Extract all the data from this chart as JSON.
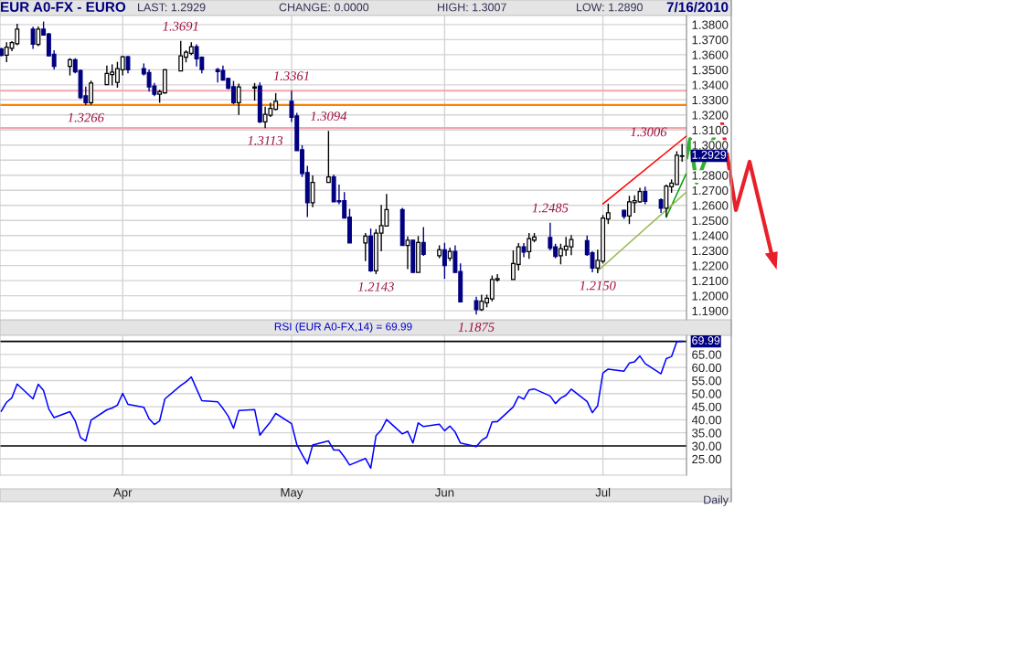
{
  "chart_data": [
    {
      "type": "candlestick",
      "title": "EUR A0-FX - EURO",
      "x": [
        "2010-03-09",
        "2010-03-10",
        "2010-03-11",
        "2010-03-12",
        "2010-03-15",
        "2010-03-16",
        "2010-03-17",
        "2010-03-18",
        "2010-03-19",
        "2010-03-22",
        "2010-03-23",
        "2010-03-24",
        "2010-03-25",
        "2010-03-26",
        "2010-03-29",
        "2010-03-30",
        "2010-03-31",
        "2010-04-01",
        "2010-04-02",
        "2010-04-05",
        "2010-04-06",
        "2010-04-07",
        "2010-04-08",
        "2010-04-09",
        "2010-04-12",
        "2010-04-13",
        "2010-04-14",
        "2010-04-15",
        "2010-04-16",
        "2010-04-19",
        "2010-04-20",
        "2010-04-21",
        "2010-04-22",
        "2010-04-23",
        "2010-04-26",
        "2010-04-27",
        "2010-04-28",
        "2010-04-29",
        "2010-04-30",
        "2010-05-03",
        "2010-05-04",
        "2010-05-05",
        "2010-05-06",
        "2010-05-07",
        "2010-05-10",
        "2010-05-11",
        "2010-05-12",
        "2010-05-13",
        "2010-05-14",
        "2010-05-17",
        "2010-05-18",
        "2010-05-19",
        "2010-05-20",
        "2010-05-21",
        "2010-05-24",
        "2010-05-25",
        "2010-05-26",
        "2010-05-27",
        "2010-05-28",
        "2010-05-31",
        "2010-06-01",
        "2010-06-02",
        "2010-06-03",
        "2010-06-04",
        "2010-06-07",
        "2010-06-08",
        "2010-06-09",
        "2010-06-10",
        "2010-06-11",
        "2010-06-14",
        "2010-06-15",
        "2010-06-16",
        "2010-06-17",
        "2010-06-18",
        "2010-06-21",
        "2010-06-22",
        "2010-06-23",
        "2010-06-24",
        "2010-06-25",
        "2010-06-28",
        "2010-06-29",
        "2010-06-30",
        "2010-07-01",
        "2010-07-02",
        "2010-07-05",
        "2010-07-06",
        "2010-07-07",
        "2010-07-08",
        "2010-07-09",
        "2010-07-12",
        "2010-07-13",
        "2010-07-14",
        "2010-07-15",
        "2010-07-16"
      ],
      "ohlc": [
        [
          1.364,
          1.3645,
          1.3589,
          1.3595
        ],
        [
          1.3597,
          1.3683,
          1.355,
          1.365
        ],
        [
          1.3643,
          1.369,
          1.3623,
          1.368
        ],
        [
          1.3673,
          1.3805,
          1.3663,
          1.377
        ],
        [
          1.377,
          1.3785,
          1.3638,
          1.367
        ],
        [
          1.3668,
          1.3787,
          1.3657,
          1.377
        ],
        [
          1.377,
          1.382,
          1.3728,
          1.373
        ],
        [
          1.3738,
          1.3745,
          1.3589,
          1.3593
        ],
        [
          1.3603,
          1.3629,
          1.3502,
          1.3522
        ],
        [
          1.3522,
          1.3577,
          1.3462,
          1.3567
        ],
        [
          1.3567,
          1.3577,
          1.3476,
          1.3486
        ],
        [
          1.3496,
          1.3502,
          1.3307,
          1.3315
        ],
        [
          1.3327,
          1.3388,
          1.3266,
          1.3281
        ],
        [
          1.3281,
          1.3428,
          1.3267,
          1.3412
        ],
        [
          1.3402,
          1.3528,
          1.3402,
          1.3476
        ],
        [
          1.3468,
          1.3536,
          1.3396,
          1.3484
        ],
        [
          1.3416,
          1.3553,
          1.3381,
          1.3508
        ],
        [
          1.35,
          1.3593,
          1.3462,
          1.3587
        ],
        [
          1.3587,
          1.3593,
          1.3476,
          1.35
        ],
        [
          1.3508,
          1.3542,
          1.3462,
          1.3472
        ],
        [
          1.3482,
          1.3502,
          1.3355,
          1.3386
        ],
        [
          1.3392,
          1.3412,
          1.3325,
          1.3337
        ],
        [
          1.3337,
          1.3367,
          1.3281,
          1.3355
        ],
        [
          1.3347,
          1.3504,
          1.3341,
          1.35
        ],
        [
          1.3492,
          1.3691,
          1.3492,
          1.3593
        ],
        [
          1.3583,
          1.3629,
          1.3549,
          1.3617
        ],
        [
          1.3609,
          1.3683,
          1.3597,
          1.3653
        ],
        [
          1.3653,
          1.3669,
          1.3522,
          1.3573
        ],
        [
          1.3583,
          1.3589,
          1.3476,
          1.3502
        ],
        [
          1.3502,
          1.3512,
          1.3416,
          1.3488
        ],
        [
          1.3496,
          1.3528,
          1.3428,
          1.3432
        ],
        [
          1.3442,
          1.3448,
          1.3371,
          1.3377
        ],
        [
          1.3388,
          1.3426,
          1.3271,
          1.3281
        ],
        [
          1.3281,
          1.3408,
          1.32,
          1.3386
        ],
        [
          1.3378,
          1.3412,
          1.3295,
          1.3386
        ],
        [
          1.3392,
          1.3416,
          1.3146,
          1.3154
        ],
        [
          1.3154,
          1.3255,
          1.3113,
          1.3204
        ],
        [
          1.3198,
          1.3281,
          1.3186,
          1.3243
        ],
        [
          1.3237,
          1.3345,
          1.3231,
          1.3291
        ],
        [
          1.3291,
          1.3361,
          1.3154,
          1.3184
        ],
        [
          1.3194,
          1.3214,
          1.2963,
          1.2963
        ],
        [
          1.2969,
          1.2999,
          1.2788,
          1.2812
        ],
        [
          1.2818,
          1.2862,
          1.2522,
          1.2617
        ],
        [
          1.2617,
          1.2798,
          1.2587,
          1.2752
        ],
        [
          1.2752,
          1.3094,
          1.2752,
          1.2788
        ],
        [
          1.2788,
          1.2804,
          1.2623,
          1.2623
        ],
        [
          1.2631,
          1.2738,
          1.2607,
          1.2623
        ],
        [
          1.2631,
          1.2687,
          1.2516,
          1.2516
        ],
        [
          1.2522,
          1.2577,
          1.2351,
          1.2351
        ],
        [
          1.2351,
          1.2416,
          1.2229,
          1.2396
        ],
        [
          1.2396,
          1.2446,
          1.2158,
          1.2165
        ],
        [
          1.2165,
          1.2442,
          1.2143,
          1.2416
        ],
        [
          1.2416,
          1.2603,
          1.2295,
          1.2466
        ],
        [
          1.2462,
          1.2675,
          1.2462,
          1.2571
        ],
        [
          1.2571,
          1.2583,
          1.2333,
          1.2333
        ],
        [
          1.2333,
          1.2394,
          1.2176,
          1.2369
        ],
        [
          1.2369,
          1.2369,
          1.2154,
          1.2154
        ],
        [
          1.2154,
          1.2396,
          1.2154,
          1.2353
        ],
        [
          1.2353,
          1.2456,
          1.2265,
          1.2275
        ],
        [
          1.2265,
          1.2335,
          1.2249,
          1.2305
        ],
        [
          1.2305,
          1.2351,
          1.2112,
          1.22
        ],
        [
          1.2249,
          1.2319,
          1.2229,
          1.2294
        ],
        [
          1.2294,
          1.2335,
          1.2154,
          1.2154
        ],
        [
          1.216,
          1.2214,
          1.1959,
          1.1959
        ],
        [
          1.1967,
          1.1993,
          1.1875,
          1.1907
        ],
        [
          1.1907,
          1.2007,
          1.1899,
          1.1963
        ],
        [
          1.1953,
          1.2007,
          1.1923,
          1.1983
        ],
        [
          1.1979,
          1.2134,
          1.1963,
          1.2108
        ],
        [
          1.2104,
          1.2144,
          1.2094,
          1.2114
        ],
        [
          1.2108,
          1.2301,
          1.2108,
          1.2214
        ],
        [
          1.2208,
          1.2349,
          1.2168,
          1.2325
        ],
        [
          1.2325,
          1.2349,
          1.2255,
          1.2289
        ],
        [
          1.2293,
          1.2416,
          1.2245,
          1.2379
        ],
        [
          1.2369,
          1.2416,
          1.2355,
          1.239
        ],
        [
          1.2386,
          1.2485,
          1.2301,
          1.2315
        ],
        [
          1.2325,
          1.2345,
          1.2249,
          1.2261
        ],
        [
          1.2265,
          1.2345,
          1.2208,
          1.2313
        ],
        [
          1.2305,
          1.239,
          1.2265,
          1.2329
        ],
        [
          1.2325,
          1.2402,
          1.2269,
          1.2373
        ],
        [
          1.2365,
          1.24,
          1.2265,
          1.2273
        ],
        [
          1.2285,
          1.2295,
          1.2155,
          1.2184
        ],
        [
          1.2184,
          1.2305,
          1.215,
          1.2235
        ],
        [
          1.2229,
          1.2536,
          1.2214,
          1.2516
        ],
        [
          1.251,
          1.2611,
          1.2476,
          1.255
        ],
        [
          1.2567,
          1.2571,
          1.251,
          1.2526
        ],
        [
          1.253,
          1.2663,
          1.2476,
          1.2623
        ],
        [
          1.2617,
          1.2667,
          1.255,
          1.2631
        ],
        [
          1.2623,
          1.2717,
          1.2617,
          1.2691
        ],
        [
          1.2691,
          1.2724,
          1.2607,
          1.2627
        ],
        [
          1.2637,
          1.2647,
          1.255,
          1.2581
        ],
        [
          1.2581,
          1.2738,
          1.2522,
          1.2728
        ],
        [
          1.2724,
          1.2772,
          1.2683,
          1.2748
        ],
        [
          1.2738,
          1.2959,
          1.2738,
          1.2933
        ],
        [
          1.2925,
          1.3007,
          1.289,
          1.2929
        ]
      ],
      "series": [
        {
          "type": "line",
          "x": [
            "2010-07-01",
            "2010-07-16T18:00"
          ],
          "values": [
            1.261,
            1.3058
          ],
          "color": "#ff0000"
        },
        {
          "type": "line",
          "x": [
            "2010-07-13",
            "2010-07-16T18:00"
          ],
          "values": [
            1.2522,
            1.2808
          ],
          "color": "#00a000"
        },
        {
          "type": "line",
          "x": [
            "2010-06-30",
            "2010-07-16T18:00"
          ],
          "values": [
            1.2164,
            1.2686
          ],
          "color": "#99bb55"
        }
      ],
      "ref_lines": [
        {
          "axis": "y",
          "value": 1.3266,
          "color": "#ff8000"
        },
        {
          "axis": "y",
          "value": 1.3361,
          "color": "#f4a6ae"
        },
        {
          "axis": "y",
          "value": 1.3113,
          "color": "#f4a6ae"
        }
      ],
      "annotations": [
        "LAST: 1.2929",
        "CHANGE: 0.0000",
        "HIGH: 1.3007",
        "LOW: 1.2890",
        "7/16/2010",
        {
          "text": "1.3691",
          "x": "2010-04-12",
          "y": 1.3691
        },
        {
          "text": "1.3266",
          "x": "2010-03-25",
          "y": 1.3266
        },
        {
          "text": "1.3361",
          "x": "2010-05-03",
          "y": 1.3361
        },
        {
          "text": "1.3113",
          "x": "2010-04-28",
          "y": 1.3113
        },
        {
          "text": "1.3094",
          "x": "2010-05-10",
          "y": 1.3094
        },
        {
          "text": "1.2143",
          "x": "2010-05-19",
          "y": 1.2143
        },
        {
          "text": "1.1875",
          "x": "2010-06-07",
          "y": 1.1875
        },
        {
          "text": "1.2485",
          "x": "2010-06-21",
          "y": 1.2485
        },
        {
          "text": "1.2150",
          "x": "2010-06-30",
          "y": 1.215
        },
        {
          "text": "1.3006",
          "x": "2010-07-16",
          "y": 1.3006
        },
        {
          "text": "1.2929",
          "x": "2010-07-16",
          "y": 1.2929
        }
      ],
      "xlim": [
        "2010-03-08T18:00",
        "2010-07-16T20:00"
      ],
      "xticks": [
        {
          "value": "2010-04-01",
          "label": null
        },
        {
          "value": "2010-05-03",
          "label": null
        },
        {
          "value": "2010-06-01",
          "label": null
        },
        {
          "value": "2010-07-01",
          "label": null
        }
      ],
      "ylim": [
        1.184,
        1.386
      ],
      "yticks": [
        {
          "value": 1.19,
          "label": "1.1900"
        },
        {
          "value": 1.2,
          "label": "1.2000"
        },
        {
          "value": 1.21,
          "label": "1.2100"
        },
        {
          "value": 1.22,
          "label": "1.2200"
        },
        {
          "value": 1.23,
          "label": "1.2300"
        },
        {
          "value": 1.24,
          "label": "1.2400"
        },
        {
          "value": 1.25,
          "label": "1.2500"
        },
        {
          "value": 1.26,
          "label": "1.2600"
        },
        {
          "value": 1.27,
          "label": "1.2700"
        },
        {
          "value": 1.28,
          "label": "1.2800"
        },
        {
          "value": 1.29,
          "label": null
        },
        {
          "value": 1.3,
          "label": "1.3000"
        },
        {
          "value": 1.31,
          "label": "1.3100"
        },
        {
          "value": 1.32,
          "label": "1.3200"
        },
        {
          "value": 1.33,
          "label": "1.3300"
        },
        {
          "value": 1.34,
          "label": "1.3400"
        },
        {
          "value": 1.35,
          "label": "1.3500"
        },
        {
          "value": 1.36,
          "label": "1.3600"
        },
        {
          "value": 1.37,
          "label": "1.3700"
        },
        {
          "value": 1.38,
          "label": "1.3800"
        }
      ],
      "tick_labels": "y",
      "grid": true
    },
    {
      "type": "line",
      "title": "RSI (EUR A0-FX,14) = 69.99",
      "x": [
        "2010-03-09",
        "2010-03-10",
        "2010-03-11",
        "2010-03-12",
        "2010-03-15",
        "2010-03-16",
        "2010-03-17",
        "2010-03-18",
        "2010-03-19",
        "2010-03-22",
        "2010-03-23",
        "2010-03-24",
        "2010-03-25",
        "2010-03-26",
        "2010-03-29",
        "2010-03-30",
        "2010-03-31",
        "2010-04-01",
        "2010-04-02",
        "2010-04-05",
        "2010-04-06",
        "2010-04-07",
        "2010-04-08",
        "2010-04-09",
        "2010-04-12",
        "2010-04-13",
        "2010-04-14",
        "2010-04-15",
        "2010-04-16",
        "2010-04-19",
        "2010-04-20",
        "2010-04-21",
        "2010-04-22",
        "2010-04-23",
        "2010-04-26",
        "2010-04-27",
        "2010-04-28",
        "2010-04-29",
        "2010-04-30",
        "2010-05-03",
        "2010-05-04",
        "2010-05-05",
        "2010-05-06",
        "2010-05-07",
        "2010-05-10",
        "2010-05-11",
        "2010-05-12",
        "2010-05-13",
        "2010-05-14",
        "2010-05-17",
        "2010-05-18",
        "2010-05-19",
        "2010-05-20",
        "2010-05-21",
        "2010-05-24",
        "2010-05-25",
        "2010-05-26",
        "2010-05-27",
        "2010-05-28",
        "2010-05-31",
        "2010-06-01",
        "2010-06-02",
        "2010-06-03",
        "2010-06-04",
        "2010-06-07",
        "2010-06-08",
        "2010-06-09",
        "2010-06-10",
        "2010-06-11",
        "2010-06-14",
        "2010-06-15",
        "2010-06-16",
        "2010-06-17",
        "2010-06-18",
        "2010-06-21",
        "2010-06-22",
        "2010-06-23",
        "2010-06-24",
        "2010-06-25",
        "2010-06-28",
        "2010-06-29",
        "2010-06-30",
        "2010-07-01",
        "2010-07-02",
        "2010-07-05",
        "2010-07-06",
        "2010-07-07",
        "2010-07-08",
        "2010-07-09",
        "2010-07-12",
        "2010-07-13",
        "2010-07-14",
        "2010-07-15",
        "2010-07-16"
      ],
      "series": [
        {
          "color": "#0000ff",
          "values": [
            43.3,
            46.7,
            48.4,
            53.7,
            48.0,
            53.6,
            51.2,
            44.1,
            40.8,
            43.1,
            39.6,
            33.2,
            31.9,
            39.8,
            43.8,
            44.5,
            45.6,
            50.1,
            45.9,
            44.8,
            40.4,
            38.2,
            39.6,
            48.0,
            53.1,
            54.5,
            56.4,
            51.8,
            47.3,
            46.9,
            44.3,
            41.4,
            36.7,
            43.5,
            43.9,
            34.1,
            36.7,
            39.2,
            42.4,
            38.5,
            30.5,
            26.7,
            23.1,
            30.3,
            31.9,
            28.4,
            28.4,
            25.8,
            22.7,
            25.2,
            21.5,
            33.9,
            36.1,
            40.1,
            34.6,
            35.6,
            31.1,
            38.8,
            37.4,
            38.3,
            35.8,
            37.6,
            35.3,
            31.1,
            29.7,
            32.1,
            33.4,
            39.2,
            39.3,
            44.9,
            48.9,
            47.9,
            51.4,
            51.8,
            49.1,
            46.2,
            48.3,
            49.4,
            51.7,
            47.0,
            42.7,
            45.4,
            57.9,
            59.4,
            58.6,
            61.7,
            62.2,
            64.4,
            61.5,
            57.6,
            63.4,
            64.2,
            69.9,
            69.99
          ]
        }
      ],
      "ref_lines": [
        {
          "axis": "y",
          "value": 70,
          "color": "#000000"
        },
        {
          "axis": "y",
          "value": 30,
          "color": "#000000"
        }
      ],
      "annotations": [
        "Daily",
        {
          "text": "69.99",
          "x": "2010-07-16",
          "y": 69.99
        }
      ],
      "xlim": [
        "2010-03-08T18:00",
        "2010-07-16T20:00"
      ],
      "xticks": [
        {
          "value": "2010-04-01",
          "label": "Apr"
        },
        {
          "value": "2010-05-03",
          "label": "May"
        },
        {
          "value": "2010-06-01",
          "label": "Jun"
        },
        {
          "value": "2010-07-01",
          "label": "Jul"
        }
      ],
      "ylim": [
        18.8,
        72.3
      ],
      "yticks": [
        {
          "value": 25,
          "label": "25.00"
        },
        {
          "value": 30,
          "label": "30.00"
        },
        {
          "value": 35,
          "label": "35.00"
        },
        {
          "value": 40,
          "label": "40.00"
        },
        {
          "value": 45,
          "label": "45.00"
        },
        {
          "value": 50,
          "label": "50.00"
        },
        {
          "value": 55,
          "label": "55.00"
        },
        {
          "value": 60,
          "label": "60.00"
        },
        {
          "value": 65,
          "label": "65.00"
        }
      ],
      "grid": true
    }
  ]
}
